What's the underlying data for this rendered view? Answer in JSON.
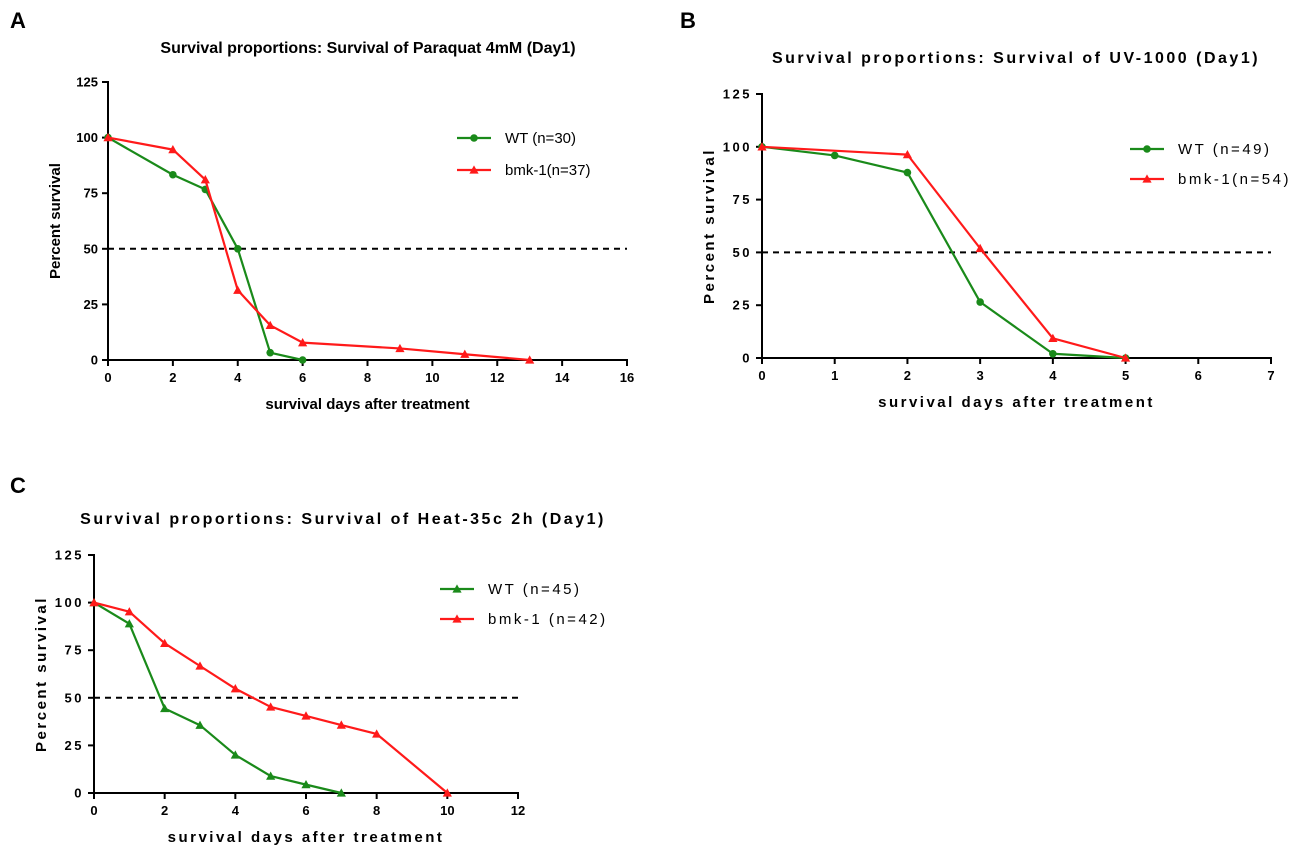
{
  "chart_data": [
    {
      "panel": "A",
      "type": "line",
      "title": "Survival proportions: Survival of Paraquat 4mM (Day1)",
      "xlabel": "survival days after treatment",
      "ylabel": "Percent survival",
      "xlim": [
        0,
        16
      ],
      "ylim": [
        0,
        125
      ],
      "xticks": [
        0,
        2,
        4,
        6,
        8,
        10,
        12,
        14,
        16
      ],
      "yticks": [
        0,
        25,
        50,
        75,
        100,
        125
      ],
      "reference_line": {
        "y": 50,
        "style": "dashed"
      },
      "legend_position": "top-right",
      "series": [
        {
          "name": "WT (n=30)",
          "color": "#1a8a1a",
          "marker": "circle",
          "x": [
            0,
            2,
            3,
            4,
            5,
            6
          ],
          "y": [
            100,
            83.3,
            76.7,
            50,
            3.3,
            0
          ]
        },
        {
          "name": "bmk-1(n=37)",
          "color": "#ff1a1a",
          "marker": "triangle",
          "x": [
            0,
            2,
            3,
            4,
            5,
            6,
            9,
            11,
            13
          ],
          "y": [
            100,
            94.6,
            81.1,
            31.4,
            15.6,
            7.8,
            5.2,
            2.6,
            0
          ]
        }
      ]
    },
    {
      "panel": "B",
      "type": "line",
      "title": "Survival proportions: Survival of UV-1000 (Day1)",
      "xlabel": "survival days after treatment",
      "ylabel": "Percent survival",
      "xlim": [
        0,
        7
      ],
      "ylim": [
        0,
        125
      ],
      "xticks": [
        0,
        1,
        2,
        3,
        4,
        5,
        6,
        7
      ],
      "yticks": [
        0,
        25,
        50,
        75,
        100,
        125
      ],
      "reference_line": {
        "y": 50,
        "style": "dashed"
      },
      "legend_position": "top-right",
      "series": [
        {
          "name": "WT (n=49)",
          "color": "#1a8a1a",
          "marker": "circle",
          "x": [
            0,
            1,
            2,
            3,
            4,
            5
          ],
          "y": [
            100,
            95.9,
            87.8,
            26.5,
            2.0,
            0
          ]
        },
        {
          "name": "bmk-1(n=54)",
          "color": "#ff1a1a",
          "marker": "triangle",
          "x": [
            0,
            2,
            3,
            4,
            5
          ],
          "y": [
            100,
            96.3,
            51.9,
            9.3,
            0
          ]
        }
      ]
    },
    {
      "panel": "C",
      "type": "line",
      "title": "Survival proportions: Survival of Heat-35c 2h (Day1)",
      "xlabel": "survival days after treatment",
      "ylabel": "Percent survival",
      "xlim": [
        0,
        12
      ],
      "ylim": [
        0,
        125
      ],
      "xticks": [
        0,
        2,
        4,
        6,
        8,
        10,
        12
      ],
      "yticks": [
        0,
        25,
        50,
        75,
        100,
        125
      ],
      "reference_line": {
        "y": 50,
        "style": "dashed"
      },
      "legend_position": "top-right",
      "series": [
        {
          "name": "WT (n=45)",
          "color": "#1a8a1a",
          "marker": "triangle",
          "x": [
            0,
            1,
            2,
            3,
            4,
            5,
            6,
            7
          ],
          "y": [
            100,
            88.9,
            44.4,
            35.6,
            20.0,
            8.9,
            4.4,
            0
          ]
        },
        {
          "name": "bmk-1 (n=42)",
          "color": "#ff1a1a",
          "marker": "triangle",
          "x": [
            0,
            1,
            2,
            3,
            4,
            5,
            6,
            7,
            8,
            10
          ],
          "y": [
            100,
            95.2,
            78.6,
            66.7,
            54.8,
            45.2,
            40.5,
            35.7,
            31.0,
            0
          ]
        }
      ]
    }
  ]
}
